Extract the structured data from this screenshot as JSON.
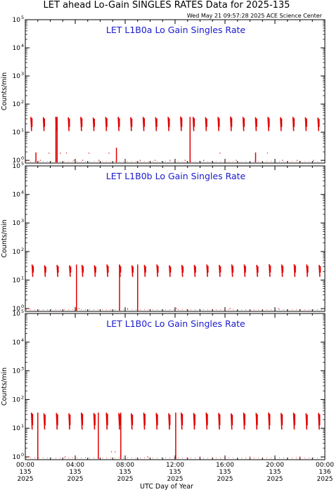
{
  "header": {
    "title": "LET ahead Lo-Gain SINGLES RATES Data for 2025-135",
    "timestamp": "Wed May 21 09:57:28 2025 ACE Science Center"
  },
  "colors": {
    "series": "#e00000",
    "panel_title": "#1a1acc",
    "axes": "#000000"
  },
  "chart_data": [
    {
      "type": "line",
      "title": "LET L1B0a Lo Gain Singles Rate",
      "ylabel": "Counts/min",
      "xlabel": "",
      "yscale": "log",
      "ylim": [
        0.8,
        100000
      ],
      "y_ticks": [
        "10",
        "10",
        "10",
        "10",
        "10",
        "10"
      ],
      "y_tick_exponents": [
        "0",
        "1",
        "2",
        "3",
        "4",
        "5"
      ],
      "xlim": [
        0,
        24
      ],
      "units": "UTC hours on day 135",
      "bursts": [
        {
          "t": 0.5,
          "top": 35,
          "bottom": 11
        },
        {
          "t": 1.5,
          "top": 34,
          "bottom": 11
        },
        {
          "t": 2.5,
          "top": 35,
          "bottom": 11
        },
        {
          "t": 3.5,
          "top": 34,
          "bottom": 11
        },
        {
          "t": 4.5,
          "top": 35,
          "bottom": 11
        },
        {
          "t": 5.5,
          "top": 33,
          "bottom": 11
        },
        {
          "t": 6.5,
          "top": 35,
          "bottom": 11
        },
        {
          "t": 7.5,
          "top": 35,
          "bottom": 11
        },
        {
          "t": 8.5,
          "top": 34,
          "bottom": 11
        },
        {
          "t": 9.5,
          "top": 35,
          "bottom": 11
        },
        {
          "t": 10.5,
          "top": 34,
          "bottom": 11
        },
        {
          "t": 11.5,
          "top": 35,
          "bottom": 11
        },
        {
          "t": 12.5,
          "top": 36,
          "bottom": 11
        },
        {
          "t": 13.5,
          "top": 35,
          "bottom": 11
        },
        {
          "t": 14.5,
          "top": 34,
          "bottom": 11
        },
        {
          "t": 15.5,
          "top": 35,
          "bottom": 11
        },
        {
          "t": 16.5,
          "top": 36,
          "bottom": 11
        },
        {
          "t": 17.5,
          "top": 35,
          "bottom": 11
        },
        {
          "t": 18.5,
          "top": 34,
          "bottom": 11
        },
        {
          "t": 19.5,
          "top": 35,
          "bottom": 11
        },
        {
          "t": 20.5,
          "top": 34,
          "bottom": 11
        },
        {
          "t": 21.5,
          "top": 35,
          "bottom": 11
        },
        {
          "t": 22.5,
          "top": 34,
          "bottom": 11
        },
        {
          "t": 23.5,
          "top": 33,
          "bottom": 11
        }
      ],
      "spikes": [
        {
          "t": 0.85,
          "top": 1.9
        },
        {
          "t": 2.45,
          "top": 35
        },
        {
          "t": 2.55,
          "top": 35
        },
        {
          "t": 7.3,
          "top": 2.8
        },
        {
          "t": 13.2,
          "top": 35
        },
        {
          "t": 18.45,
          "top": 1.9
        }
      ],
      "points": [
        {
          "t": 0.3,
          "v": 1.0
        },
        {
          "t": 1.2,
          "v": 1.0
        },
        {
          "t": 1.9,
          "v": 1.8
        },
        {
          "t": 2.8,
          "v": 1.8
        },
        {
          "t": 3.3,
          "v": 1.8
        },
        {
          "t": 3.9,
          "v": 1.0
        },
        {
          "t": 4.6,
          "v": 1.0
        },
        {
          "t": 5.1,
          "v": 1.8
        },
        {
          "t": 5.9,
          "v": 1.0
        },
        {
          "t": 6.7,
          "v": 1.8
        },
        {
          "t": 8.0,
          "v": 1.0
        },
        {
          "t": 9.2,
          "v": 1.0
        },
        {
          "t": 10.4,
          "v": 1.0
        },
        {
          "t": 11.6,
          "v": 1.0
        },
        {
          "t": 12.8,
          "v": 1.0
        },
        {
          "t": 14.3,
          "v": 1.0
        },
        {
          "t": 15.6,
          "v": 1.8
        },
        {
          "t": 16.9,
          "v": 1.0
        },
        {
          "t": 19.4,
          "v": 1.8
        },
        {
          "t": 20.6,
          "v": 1.0
        },
        {
          "t": 21.8,
          "v": 1.0
        },
        {
          "t": 23.1,
          "v": 1.0
        }
      ]
    },
    {
      "type": "line",
      "title": "LET L1B0b Lo Gain Singles Rate",
      "ylabel": "Counts/min",
      "xlabel": "",
      "yscale": "log",
      "ylim": [
        0.8,
        100000
      ],
      "y_ticks": [
        "10",
        "10",
        "10",
        "10",
        "10",
        "10"
      ],
      "y_tick_exponents": [
        "0",
        "1",
        "2",
        "3",
        "4",
        "5"
      ],
      "xlim": [
        0,
        24
      ],
      "units": "UTC hours on day 135",
      "bursts": [
        {
          "t": 0.6,
          "top": 35,
          "bottom": 13
        },
        {
          "t": 1.6,
          "top": 33,
          "bottom": 13
        },
        {
          "t": 2.6,
          "top": 34,
          "bottom": 13
        },
        {
          "t": 3.6,
          "top": 33,
          "bottom": 13
        },
        {
          "t": 4.6,
          "top": 34,
          "bottom": 13
        },
        {
          "t": 5.6,
          "top": 33,
          "bottom": 13
        },
        {
          "t": 6.6,
          "top": 35,
          "bottom": 13
        },
        {
          "t": 7.6,
          "top": 34,
          "bottom": 13
        },
        {
          "t": 8.6,
          "top": 33,
          "bottom": 13
        },
        {
          "t": 9.6,
          "top": 34,
          "bottom": 13
        },
        {
          "t": 10.6,
          "top": 35,
          "bottom": 13
        },
        {
          "t": 11.6,
          "top": 33,
          "bottom": 13
        },
        {
          "t": 12.6,
          "top": 34,
          "bottom": 13
        },
        {
          "t": 13.6,
          "top": 34,
          "bottom": 13
        },
        {
          "t": 14.6,
          "top": 35,
          "bottom": 13
        },
        {
          "t": 15.6,
          "top": 34,
          "bottom": 13
        },
        {
          "t": 16.6,
          "top": 35,
          "bottom": 13
        },
        {
          "t": 17.6,
          "top": 35,
          "bottom": 13
        },
        {
          "t": 18.6,
          "top": 34,
          "bottom": 13
        },
        {
          "t": 19.6,
          "top": 36,
          "bottom": 13
        },
        {
          "t": 20.6,
          "top": 35,
          "bottom": 13
        },
        {
          "t": 21.6,
          "top": 36,
          "bottom": 13
        },
        {
          "t": 22.6,
          "top": 35,
          "bottom": 13
        },
        {
          "t": 23.6,
          "top": 34,
          "bottom": 13
        }
      ],
      "spikes": [
        {
          "t": 4.1,
          "top": 35
        },
        {
          "t": 7.55,
          "top": 35
        },
        {
          "t": 9.0,
          "top": 35
        }
      ],
      "points": [
        {
          "t": 0.2,
          "v": 1.0
        },
        {
          "t": 4.3,
          "v": 1.0
        },
        {
          "t": 8.2,
          "v": 1.0
        },
        {
          "t": 12.1,
          "v": 1.0
        },
        {
          "t": 16.4,
          "v": 1.0
        },
        {
          "t": 20.3,
          "v": 1.0
        }
      ]
    },
    {
      "type": "line",
      "title": "LET L1B0c Lo Gain Singles Rate",
      "ylabel": "Counts/min",
      "xlabel": "UTC Day of Year",
      "yscale": "log",
      "ylim": [
        0.8,
        100000
      ],
      "y_ticks": [
        "10",
        "10",
        "10",
        "10",
        "10",
        "10"
      ],
      "y_tick_exponents": [
        "0",
        "1",
        "2",
        "3",
        "4",
        "5"
      ],
      "xlim": [
        0,
        24
      ],
      "units": "UTC hours on day 135",
      "x_ticks": [
        {
          "time": "00:00",
          "day": "135",
          "year": "2025"
        },
        {
          "time": "04:00",
          "day": "135",
          "year": "2025"
        },
        {
          "time": "08:00",
          "day": "135",
          "year": "2025"
        },
        {
          "time": "12:00",
          "day": "135",
          "year": "2025"
        },
        {
          "time": "16:00",
          "day": "135",
          "year": "2025"
        },
        {
          "time": "20:00",
          "day": "135",
          "year": "2025"
        },
        {
          "time": "00:00",
          "day": "136",
          "year": "2025"
        }
      ],
      "bursts": [
        {
          "t": 0.55,
          "top": 35,
          "bottom": 9
        },
        {
          "t": 1.55,
          "top": 33,
          "bottom": 9
        },
        {
          "t": 2.55,
          "top": 34,
          "bottom": 9
        },
        {
          "t": 3.55,
          "top": 33,
          "bottom": 9
        },
        {
          "t": 4.55,
          "top": 35,
          "bottom": 9
        },
        {
          "t": 5.55,
          "top": 34,
          "bottom": 9
        },
        {
          "t": 6.55,
          "top": 35,
          "bottom": 9
        },
        {
          "t": 7.55,
          "top": 34,
          "bottom": 9
        },
        {
          "t": 8.55,
          "top": 33,
          "bottom": 9
        },
        {
          "t": 9.55,
          "top": 35,
          "bottom": 9
        },
        {
          "t": 10.55,
          "top": 34,
          "bottom": 9
        },
        {
          "t": 11.55,
          "top": 33,
          "bottom": 9
        },
        {
          "t": 12.55,
          "top": 35,
          "bottom": 9
        },
        {
          "t": 13.55,
          "top": 34,
          "bottom": 9
        },
        {
          "t": 14.55,
          "top": 35,
          "bottom": 9
        },
        {
          "t": 15.55,
          "top": 34,
          "bottom": 9
        },
        {
          "t": 16.55,
          "top": 33,
          "bottom": 9
        },
        {
          "t": 17.55,
          "top": 35,
          "bottom": 9
        },
        {
          "t": 18.55,
          "top": 34,
          "bottom": 9
        },
        {
          "t": 19.55,
          "top": 35,
          "bottom": 9
        },
        {
          "t": 20.55,
          "top": 34,
          "bottom": 9
        },
        {
          "t": 21.55,
          "top": 35,
          "bottom": 9
        },
        {
          "t": 22.55,
          "top": 33,
          "bottom": 9
        },
        {
          "t": 23.55,
          "top": 34,
          "bottom": 9
        }
      ],
      "spikes": [
        {
          "t": 1.0,
          "top": 35
        },
        {
          "t": 5.85,
          "top": 35
        },
        {
          "t": 7.65,
          "top": 35
        },
        {
          "t": 12.05,
          "top": 35
        }
      ],
      "points": [
        {
          "t": 0.3,
          "v": 1.0
        },
        {
          "t": 3.2,
          "v": 1.0
        },
        {
          "t": 6.9,
          "v": 1.5
        },
        {
          "t": 7.2,
          "v": 1.5
        },
        {
          "t": 9.8,
          "v": 1.0
        },
        {
          "t": 14.0,
          "v": 1.0
        },
        {
          "t": 18.0,
          "v": 1.0
        },
        {
          "t": 22.0,
          "v": 1.0
        }
      ]
    }
  ]
}
